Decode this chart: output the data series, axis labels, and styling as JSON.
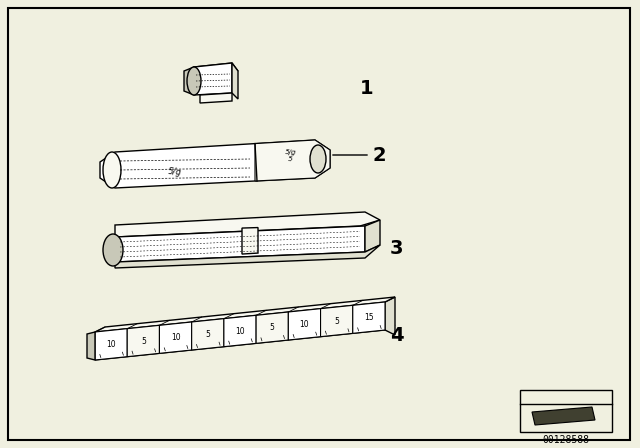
{
  "bg_color": "#f0f0e0",
  "line_color": "#000000",
  "diagram_id": "00128588",
  "labels": [
    "1",
    "2",
    "3",
    "4"
  ],
  "figsize": [
    6.4,
    4.48
  ],
  "dpi": 100
}
